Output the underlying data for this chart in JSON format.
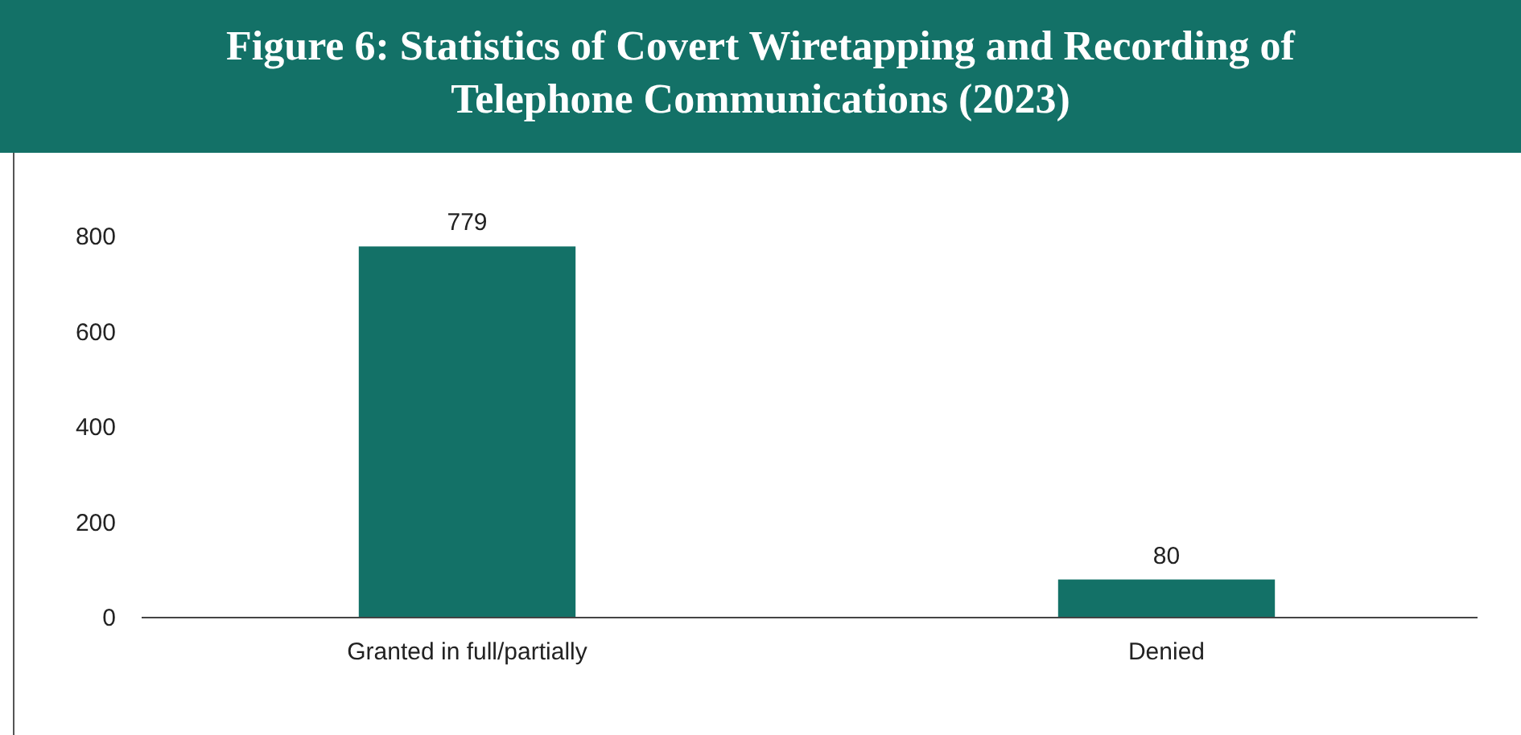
{
  "chart_data": {
    "type": "bar",
    "title": "Figure 6: Statistics of Covert Wiretapping and Recording of Telephone Communications (2023)",
    "categories": [
      "Granted in full/partially",
      "Denied"
    ],
    "values": [
      779,
      80
    ],
    "color": "#137167",
    "ylim": [
      0,
      800
    ],
    "yticks": [
      0,
      200,
      400,
      600,
      800
    ],
    "grid": false,
    "data_labels": true
  }
}
